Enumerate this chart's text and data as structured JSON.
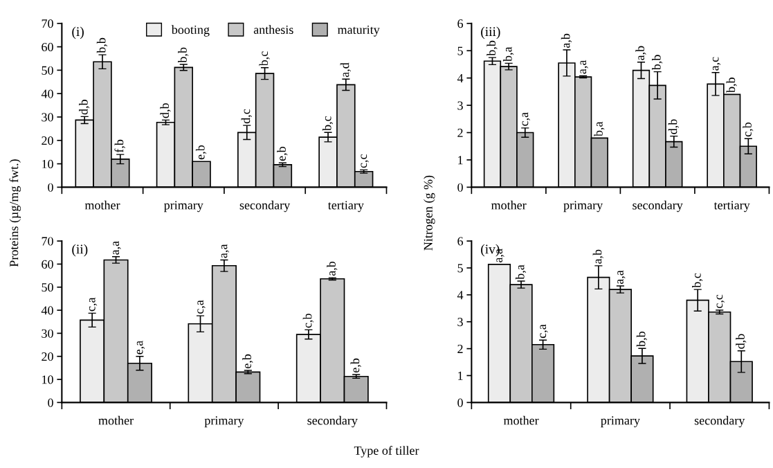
{
  "chart_data": [
    {
      "type": "bar",
      "title": "(i)",
      "ylabel": "Proteins (µg/mg fwt.)",
      "categories": [
        "mother",
        "primary",
        "secondary",
        "tertiary"
      ],
      "ylim": [
        0,
        70
      ],
      "yticks": [
        0,
        10,
        20,
        30,
        40,
        50,
        60,
        70
      ],
      "legend": "top",
      "grid": false,
      "series": [
        {
          "name": "booting",
          "color": "#ececec",
          "values": [
            28.7,
            27.7,
            23.4,
            21.4
          ],
          "errors": [
            1.5,
            1,
            3,
            2
          ],
          "value_labels": [
            "d,b",
            "d,b",
            "d,c",
            "b,c"
          ]
        },
        {
          "name": "anthesis",
          "color": "#c8c8c8",
          "values": [
            53.6,
            51.2,
            48.6,
            43.8
          ],
          "errors": [
            3,
            1.3,
            2.5,
            2.4
          ],
          "value_labels": [
            "b,b",
            "b,b",
            "b,c",
            "a,d"
          ]
        },
        {
          "name": "maturity",
          "color": "#b0b0b0",
          "values": [
            12,
            11,
            9.6,
            6.7
          ],
          "errors": [
            2,
            null,
            0.8,
            0.7
          ],
          "value_labels": [
            "f,b",
            "e,b",
            "e,b",
            "c,c"
          ]
        }
      ]
    },
    {
      "type": "bar",
      "title": "(iii)",
      "ylabel": "Nitrogen (g %)",
      "categories": [
        "mother",
        "primary",
        "secondary",
        "tertiary"
      ],
      "ylim": [
        0,
        6
      ],
      "yticks": [
        0,
        1,
        2,
        3,
        4,
        5,
        6
      ],
      "grid": false,
      "series": [
        {
          "color": "#ececec",
          "values": [
            4.62,
            4.55,
            4.28,
            3.78
          ],
          "errors": [
            0.13,
            0.48,
            0.3,
            0.42
          ],
          "value_labels": [
            "b,b",
            "a,b",
            "a,b",
            "a,c"
          ]
        },
        {
          "color": "#c8c8c8",
          "values": [
            4.42,
            4.04,
            3.73,
            3.4
          ],
          "errors": [
            0.12,
            0.04,
            0.5,
            null
          ],
          "value_labels": [
            "b,a",
            "a,a",
            "b,b",
            "b,b"
          ]
        },
        {
          "color": "#b0b0b0",
          "values": [
            2.0,
            1.8,
            1.67,
            1.5
          ],
          "errors": [
            0.17,
            null,
            0.2,
            0.28
          ],
          "value_labels": [
            "c,a",
            "b,a",
            "d,b",
            "c,b"
          ]
        }
      ]
    },
    {
      "type": "bar",
      "title": "(ii)",
      "xlabel": "Type of tiller",
      "categories": [
        "mother",
        "primary",
        "secondary"
      ],
      "ylim": [
        0,
        70
      ],
      "yticks": [
        0,
        10,
        20,
        30,
        40,
        50,
        60,
        70
      ],
      "grid": false,
      "series": [
        {
          "color": "#ececec",
          "values": [
            35.7,
            34.1,
            29.5
          ],
          "errors": [
            3,
            3.5,
            2
          ],
          "value_labels": [
            "c,a",
            "c,a",
            "c,b"
          ]
        },
        {
          "color": "#c8c8c8",
          "values": [
            61.8,
            59.3,
            53.6
          ],
          "errors": [
            1.4,
            2.5,
            0.5
          ],
          "value_labels": [
            "a,a",
            "a,a",
            "a,b"
          ]
        },
        {
          "color": "#b0b0b0",
          "values": [
            17,
            13.2,
            11.3
          ],
          "errors": [
            3,
            0.7,
            0.8
          ],
          "value_labels": [
            "e,a",
            "e,b",
            "e,b"
          ]
        }
      ]
    },
    {
      "type": "bar",
      "title": "(iv)",
      "categories": [
        "mother",
        "primary",
        "secondary"
      ],
      "ylim": [
        0,
        6
      ],
      "yticks": [
        0,
        1,
        2,
        3,
        4,
        5,
        6
      ],
      "grid": false,
      "series": [
        {
          "color": "#ececec",
          "values": [
            5.13,
            4.65,
            3.8
          ],
          "errors": [
            null,
            0.43,
            0.4
          ],
          "value_labels": [
            "a,a",
            "a,b",
            "b,c"
          ]
        },
        {
          "color": "#c8c8c8",
          "values": [
            4.38,
            4.2,
            3.36
          ],
          "errors": [
            0.13,
            0.13,
            0.07
          ],
          "value_labels": [
            "b,a",
            "a,a",
            "c,c"
          ]
        },
        {
          "color": "#b0b0b0",
          "values": [
            2.15,
            1.73,
            1.52
          ],
          "errors": [
            0.17,
            0.28,
            0.4
          ],
          "value_labels": [
            "c,a",
            "b,b",
            "d,b"
          ]
        }
      ]
    }
  ]
}
